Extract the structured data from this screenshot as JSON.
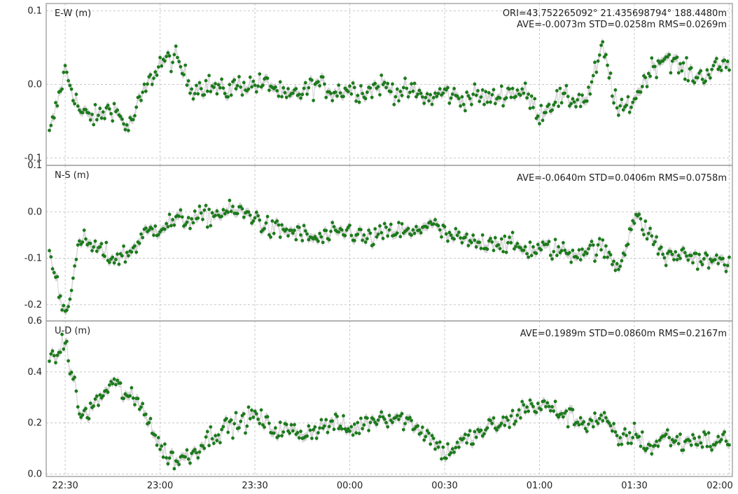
{
  "chart_data": [
    {
      "type": "scatter",
      "label": "E-W (m)",
      "ori": "ORI=43.752265092° 21.435698794° 188.4480m",
      "stats": "AVE=-0.0073m STD=0.0258m RMS=0.0269m",
      "ylim": [
        -0.11,
        0.11
      ],
      "yticks": [
        0.1,
        0.0,
        -0.1
      ],
      "yticklabels": [
        "0.1",
        "0.0",
        "-0.1"
      ],
      "x": [
        "22:25",
        "22:30",
        "22:35",
        "22:40",
        "22:45",
        "22:50",
        "22:55",
        "23:00",
        "23:05",
        "23:10",
        "23:15",
        "23:20",
        "23:25",
        "23:30",
        "23:35",
        "23:40",
        "23:45",
        "23:50",
        "23:55",
        "00:00",
        "00:05",
        "00:10",
        "00:15",
        "00:20",
        "00:25",
        "00:30",
        "00:35",
        "00:40",
        "00:45",
        "00:50",
        "00:55",
        "01:00",
        "01:05",
        "01:10",
        "01:15",
        "01:20",
        "01:25",
        "01:30",
        "01:35",
        "01:40",
        "01:45",
        "01:50",
        "01:55",
        "02:00"
      ],
      "y": [
        -0.07,
        0.02,
        -0.04,
        -0.045,
        -0.03,
        -0.06,
        -0.01,
        0.03,
        0.035,
        -0.005,
        0.0,
        -0.01,
        0.0,
        0.0,
        0.0,
        -0.02,
        -0.01,
        0.0,
        -0.01,
        -0.005,
        -0.01,
        0.0,
        -0.01,
        -0.01,
        -0.02,
        -0.01,
        -0.02,
        -0.015,
        -0.02,
        -0.01,
        -0.01,
        -0.04,
        -0.02,
        -0.02,
        -0.02,
        0.05,
        -0.04,
        -0.02,
        0.02,
        0.04,
        0.02,
        0.01,
        0.02,
        0.03
      ]
    },
    {
      "type": "scatter",
      "label": "N-S (m)",
      "stats": "AVE=-0.0640m STD=0.0406m RMS=0.0758m",
      "ylim": [
        -0.235,
        0.1
      ],
      "yticks": [
        0.1,
        0.0,
        -0.1,
        -0.2
      ],
      "yticklabels": [
        "0.1",
        "0.0",
        "-0.1",
        "-0.2"
      ],
      "x": [
        "22:25",
        "22:30",
        "22:35",
        "22:40",
        "22:45",
        "22:50",
        "22:55",
        "23:00",
        "23:05",
        "23:10",
        "23:15",
        "23:20",
        "23:25",
        "23:30",
        "23:35",
        "23:40",
        "23:45",
        "23:50",
        "23:55",
        "00:00",
        "00:05",
        "00:10",
        "00:15",
        "00:20",
        "00:25",
        "00:30",
        "00:35",
        "00:40",
        "00:45",
        "00:50",
        "00:55",
        "01:00",
        "01:05",
        "01:10",
        "01:15",
        "01:20",
        "01:25",
        "01:30",
        "01:35",
        "01:40",
        "01:45",
        "01:50",
        "01:55",
        "02:00"
      ],
      "y": [
        -0.09,
        -0.22,
        -0.06,
        -0.08,
        -0.1,
        -0.09,
        -0.05,
        -0.03,
        -0.02,
        -0.015,
        -0.01,
        0.0,
        0.0,
        -0.01,
        -0.04,
        -0.04,
        -0.05,
        -0.06,
        -0.05,
        -0.04,
        -0.06,
        -0.05,
        -0.04,
        -0.05,
        -0.02,
        -0.05,
        -0.06,
        -0.07,
        -0.06,
        -0.07,
        -0.08,
        -0.08,
        -0.08,
        -0.09,
        -0.08,
        -0.08,
        -0.12,
        -0.01,
        -0.05,
        -0.1,
        -0.09,
        -0.1,
        -0.11,
        -0.1
      ]
    },
    {
      "type": "scatter",
      "label": "U-D (m)",
      "stats": "AVE=0.1989m STD=0.0860m RMS=0.2167m",
      "ylim": [
        -0.01,
        0.6
      ],
      "yticks": [
        0.6,
        0.4,
        0.2,
        0.0
      ],
      "yticklabels": [
        "0.6",
        "0.4",
        "0.2",
        "0.0"
      ],
      "x": [
        "22:25",
        "22:30",
        "22:35",
        "22:40",
        "22:45",
        "22:50",
        "22:55",
        "23:00",
        "23:05",
        "23:10",
        "23:15",
        "23:20",
        "23:25",
        "23:30",
        "23:35",
        "23:40",
        "23:45",
        "23:50",
        "23:55",
        "00:00",
        "00:05",
        "00:10",
        "00:15",
        "00:20",
        "00:25",
        "00:30",
        "00:35",
        "00:40",
        "00:45",
        "00:50",
        "00:55",
        "01:00",
        "01:05",
        "01:10",
        "01:15",
        "01:20",
        "01:25",
        "01:30",
        "01:35",
        "01:40",
        "01:45",
        "01:50",
        "01:55",
        "02:00"
      ],
      "y": [
        0.42,
        0.52,
        0.22,
        0.28,
        0.36,
        0.3,
        0.26,
        0.1,
        0.05,
        0.08,
        0.14,
        0.18,
        0.2,
        0.23,
        0.18,
        0.17,
        0.16,
        0.18,
        0.2,
        0.17,
        0.2,
        0.23,
        0.22,
        0.2,
        0.15,
        0.08,
        0.12,
        0.15,
        0.19,
        0.2,
        0.26,
        0.27,
        0.25,
        0.22,
        0.2,
        0.22,
        0.13,
        0.16,
        0.1,
        0.15,
        0.12,
        0.14,
        0.12,
        0.14
      ]
    }
  ],
  "xaxis": {
    "ticks": [
      "22:30",
      "23:00",
      "23:30",
      "00:00",
      "00:30",
      "01:00",
      "01:30",
      "02:00"
    ],
    "range": [
      "22:24",
      "02:01"
    ]
  },
  "colors": {
    "points": "#1c7a1c",
    "error_band": "#b5b5b5",
    "grid": "#c8c8c8",
    "frame": "#a8a8a8"
  },
  "grid": true
}
